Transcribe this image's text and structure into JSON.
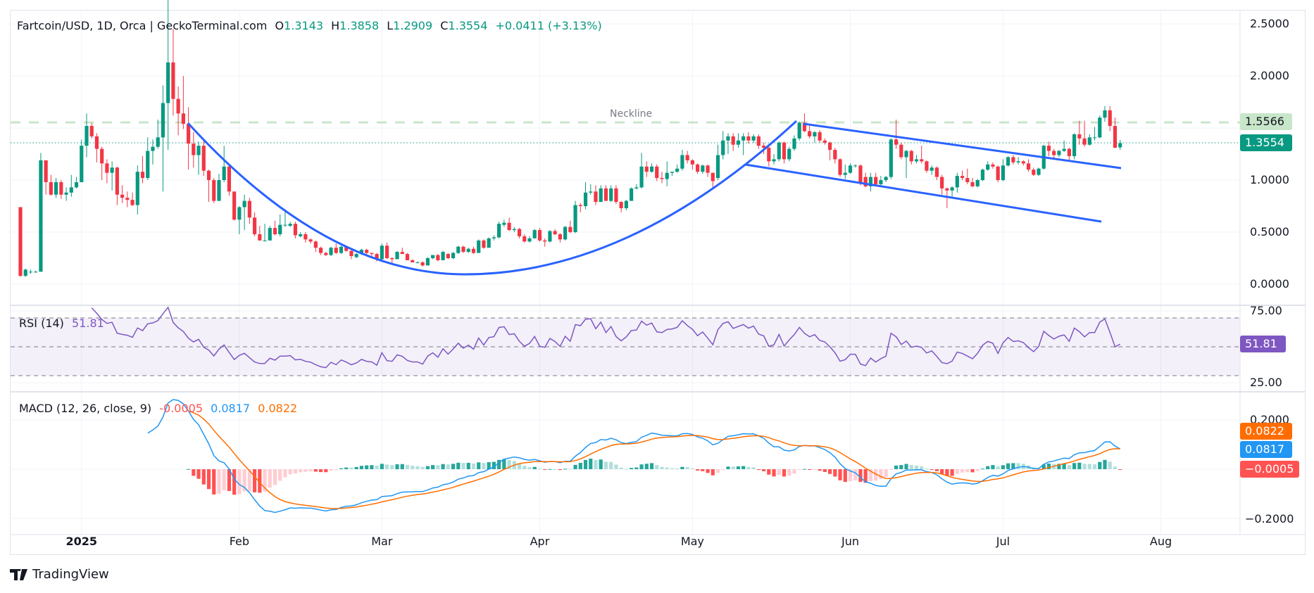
{
  "legend": {
    "symbol": "Fartcoin/USD, 1D, Orca | GeckoTerminal.com",
    "o_label": "O",
    "o": "1.3143",
    "h_label": "H",
    "h": "1.3858",
    "l_label": "L",
    "l": "1.2909",
    "c_label": "C",
    "c": "1.3554",
    "change": "+0.0411 (+3.13%)"
  },
  "rsi_legend": {
    "name": "RSI (14)",
    "value": "51.81"
  },
  "macd_legend": {
    "name": "MACD (12, 26, close, 9)",
    "hist": "-0.0005",
    "macd": "0.0817",
    "signal": "0.0822"
  },
  "price_axis": [
    "2.5000",
    "2.0000",
    "1.0000",
    "0.5000",
    "0.0000"
  ],
  "rsi_axis": [
    "75.00",
    "25.00"
  ],
  "macd_axis": [
    "0.2000",
    "−0.2000"
  ],
  "tags": {
    "neckline": "1.5566",
    "last_price": "1.3554",
    "rsi": "51.81",
    "signal": "0.0822",
    "macd": "0.0817",
    "hist": "−0.0005"
  },
  "neckline_label": "Neckline",
  "brand": "TradingView",
  "colors": {
    "up": "#089981",
    "down": "#f23645",
    "rsi": "#7e57c2",
    "macd": "#2196f3",
    "signal": "#ff6d00",
    "trendline": "#2962ff",
    "neckline": "#c8e6c9"
  },
  "chart_data": {
    "type": "candlestick",
    "interval": "1D",
    "price_levels": [
      2.5,
      2.0,
      1.0,
      0.5,
      0.0
    ],
    "ylim": [
      0,
      2.6
    ],
    "neckline": 1.5566,
    "last_close": 1.3554,
    "x_ticks": [
      {
        "label": "2025",
        "date": "2025-01-01"
      },
      {
        "label": "Feb",
        "date": "2025-02-01"
      },
      {
        "label": "Mar",
        "date": "2025-03-01"
      },
      {
        "label": "Apr",
        "date": "2025-04-01"
      },
      {
        "label": "May",
        "date": "2025-05-01"
      },
      {
        "label": "Jun",
        "date": "2025-06-01"
      },
      {
        "label": "Jul",
        "date": "2025-07-01"
      },
      {
        "label": "Aug",
        "date": "2025-08-01"
      }
    ],
    "rsi": {
      "period": 14,
      "last": 51.81,
      "bands": [
        70,
        50,
        30
      ]
    },
    "macd": {
      "fast": 12,
      "slow": 26,
      "signal": 9,
      "last_macd": 0.0817,
      "last_signal": 0.0822,
      "last_hist": -0.0005
    },
    "ohlc": [
      [
        0.74,
        0.74,
        0.07,
        0.08
      ],
      [
        0.08,
        0.15,
        0.07,
        0.14
      ],
      [
        0.12,
        0.14,
        0.1,
        0.12
      ],
      [
        0.12,
        0.13,
        0.11,
        0.12
      ],
      [
        0.12,
        1.26,
        0.12,
        1.19
      ],
      [
        1.19,
        1.19,
        0.86,
        0.98
      ],
      [
        0.98,
        1.05,
        0.85,
        0.86
      ],
      [
        0.86,
        1.02,
        0.83,
        0.98
      ],
      [
        0.98,
        1.0,
        0.82,
        0.86
      ],
      [
        0.86,
        0.93,
        0.8,
        0.88
      ],
      [
        0.88,
        1.05,
        0.84,
        0.93
      ],
      [
        0.93,
        1.03,
        0.92,
        0.98
      ],
      [
        0.98,
        1.39,
        0.98,
        1.33
      ],
      [
        1.33,
        1.64,
        1.22,
        1.52
      ],
      [
        1.52,
        1.55,
        1.4,
        1.42
      ],
      [
        1.42,
        1.45,
        1.17,
        1.3
      ],
      [
        1.3,
        1.32,
        1.0,
        1.16
      ],
      [
        1.16,
        1.2,
        0.97,
        1.07
      ],
      [
        1.07,
        1.18,
        0.9,
        1.12
      ],
      [
        1.12,
        1.13,
        0.76,
        0.86
      ],
      [
        0.86,
        0.95,
        0.78,
        0.83
      ],
      [
        0.83,
        0.89,
        0.74,
        0.81
      ],
      [
        0.81,
        0.88,
        0.75,
        0.76
      ],
      [
        0.76,
        1.14,
        0.67,
        1.08
      ],
      [
        1.08,
        1.23,
        0.97,
        1.02
      ],
      [
        1.02,
        1.41,
        1.0,
        1.28
      ],
      [
        1.28,
        1.39,
        1.15,
        1.32
      ],
      [
        1.32,
        1.58,
        1.3,
        1.41
      ],
      [
        1.41,
        1.91,
        0.89,
        1.74
      ],
      [
        1.74,
        2.75,
        1.29,
        2.13
      ],
      [
        2.13,
        2.45,
        1.62,
        1.78
      ],
      [
        1.78,
        1.9,
        1.43,
        1.64
      ],
      [
        1.64,
        2.0,
        1.49,
        1.54
      ],
      [
        1.54,
        1.7,
        1.1,
        1.35
      ],
      [
        1.35,
        1.46,
        1.12,
        1.24
      ],
      [
        1.24,
        1.37,
        1.05,
        1.33
      ],
      [
        1.33,
        1.38,
        1.04,
        1.09
      ],
      [
        1.09,
        1.1,
        0.79,
        1.0
      ],
      [
        1.0,
        1.02,
        0.78,
        0.8
      ],
      [
        0.8,
        1.06,
        0.8,
        1.0
      ],
      [
        1.0,
        1.33,
        0.98,
        1.13
      ],
      [
        1.13,
        1.15,
        0.85,
        0.89
      ],
      [
        0.89,
        0.89,
        0.61,
        0.62
      ],
      [
        0.62,
        0.75,
        0.48,
        0.74
      ],
      [
        0.74,
        0.86,
        0.52,
        0.8
      ],
      [
        0.8,
        0.83,
        0.58,
        0.64
      ],
      [
        0.64,
        0.69,
        0.46,
        0.48
      ],
      [
        0.48,
        0.56,
        0.42,
        0.42
      ],
      [
        0.42,
        0.58,
        0.41,
        0.42
      ],
      [
        0.42,
        0.56,
        0.42,
        0.54
      ],
      [
        0.54,
        0.61,
        0.47,
        0.48
      ],
      [
        0.48,
        0.67,
        0.46,
        0.57
      ],
      [
        0.57,
        0.72,
        0.55,
        0.57
      ],
      [
        0.56,
        0.6,
        0.55,
        0.58
      ],
      [
        0.58,
        0.6,
        0.44,
        0.47
      ],
      [
        0.46,
        0.5,
        0.45,
        0.48
      ],
      [
        0.48,
        0.5,
        0.4,
        0.43
      ],
      [
        0.43,
        0.44,
        0.39,
        0.41
      ],
      [
        0.41,
        0.42,
        0.31,
        0.35
      ],
      [
        0.35,
        0.36,
        0.28,
        0.3
      ],
      [
        0.3,
        0.31,
        0.27,
        0.28
      ],
      [
        0.28,
        0.36,
        0.27,
        0.35
      ],
      [
        0.35,
        0.39,
        0.29,
        0.3
      ],
      [
        0.3,
        0.37,
        0.29,
        0.36
      ],
      [
        0.36,
        0.37,
        0.31,
        0.32
      ],
      [
        0.32,
        0.33,
        0.24,
        0.27
      ],
      [
        0.26,
        0.3,
        0.25,
        0.29
      ],
      [
        0.29,
        0.34,
        0.28,
        0.33
      ],
      [
        0.33,
        0.34,
        0.29,
        0.3
      ],
      [
        0.3,
        0.3,
        0.26,
        0.29
      ],
      [
        0.29,
        0.3,
        0.22,
        0.24
      ],
      [
        0.24,
        0.39,
        0.23,
        0.37
      ],
      [
        0.37,
        0.4,
        0.24,
        0.25
      ],
      [
        0.25,
        0.26,
        0.2,
        0.24
      ],
      [
        0.24,
        0.32,
        0.24,
        0.31
      ],
      [
        0.31,
        0.35,
        0.29,
        0.29
      ],
      [
        0.29,
        0.3,
        0.23,
        0.23
      ],
      [
        0.23,
        0.24,
        0.21,
        0.21
      ],
      [
        0.21,
        0.22,
        0.2,
        0.21
      ],
      [
        0.21,
        0.22,
        0.17,
        0.18
      ],
      [
        0.18,
        0.26,
        0.18,
        0.25
      ],
      [
        0.25,
        0.28,
        0.24,
        0.28
      ],
      [
        0.28,
        0.29,
        0.22,
        0.23
      ],
      [
        0.23,
        0.32,
        0.23,
        0.31
      ],
      [
        0.29,
        0.3,
        0.24,
        0.25
      ],
      [
        0.25,
        0.31,
        0.24,
        0.3
      ],
      [
        0.3,
        0.37,
        0.29,
        0.36
      ],
      [
        0.36,
        0.37,
        0.3,
        0.31
      ],
      [
        0.31,
        0.35,
        0.3,
        0.34
      ],
      [
        0.34,
        0.36,
        0.29,
        0.3
      ],
      [
        0.3,
        0.43,
        0.3,
        0.42
      ],
      [
        0.42,
        0.43,
        0.34,
        0.35
      ],
      [
        0.35,
        0.45,
        0.35,
        0.44
      ],
      [
        0.44,
        0.47,
        0.42,
        0.45
      ],
      [
        0.45,
        0.6,
        0.44,
        0.58
      ],
      [
        0.57,
        0.62,
        0.55,
        0.59
      ],
      [
        0.59,
        0.64,
        0.51,
        0.52
      ],
      [
        0.52,
        0.55,
        0.5,
        0.53
      ],
      [
        0.53,
        0.54,
        0.44,
        0.46
      ],
      [
        0.46,
        0.48,
        0.4,
        0.41
      ],
      [
        0.41,
        0.46,
        0.4,
        0.44
      ],
      [
        0.44,
        0.53,
        0.44,
        0.52
      ],
      [
        0.52,
        0.54,
        0.41,
        0.42
      ],
      [
        0.42,
        0.44,
        0.36,
        0.41
      ],
      [
        0.41,
        0.52,
        0.4,
        0.51
      ],
      [
        0.51,
        0.53,
        0.47,
        0.48
      ],
      [
        0.48,
        0.49,
        0.4,
        0.43
      ],
      [
        0.43,
        0.56,
        0.42,
        0.55
      ],
      [
        0.55,
        0.61,
        0.49,
        0.5
      ],
      [
        0.5,
        0.8,
        0.49,
        0.76
      ],
      [
        0.76,
        0.78,
        0.69,
        0.75
      ],
      [
        0.75,
        0.98,
        0.72,
        0.88
      ],
      [
        0.88,
        0.96,
        0.86,
        0.89
      ],
      [
        0.89,
        0.95,
        0.76,
        0.79
      ],
      [
        0.79,
        0.95,
        0.79,
        0.92
      ],
      [
        0.92,
        0.95,
        0.8,
        0.8
      ],
      [
        0.8,
        0.95,
        0.79,
        0.92
      ],
      [
        0.92,
        0.95,
        0.77,
        0.79
      ],
      [
        0.79,
        0.8,
        0.69,
        0.73
      ],
      [
        0.73,
        0.81,
        0.71,
        0.8
      ],
      [
        0.8,
        0.93,
        0.8,
        0.92
      ],
      [
        0.92,
        0.96,
        0.91,
        0.93
      ],
      [
        0.93,
        1.26,
        0.92,
        1.13
      ],
      [
        1.13,
        1.18,
        1.03,
        1.08
      ],
      [
        1.08,
        1.16,
        1.07,
        1.13
      ],
      [
        1.13,
        1.15,
        0.99,
        1.02
      ],
      [
        1.02,
        1.08,
        0.97,
        1.01
      ],
      [
        1.01,
        1.18,
        0.94,
        1.07
      ],
      [
        1.07,
        1.08,
        1.04,
        1.08
      ],
      [
        1.08,
        1.15,
        1.07,
        1.11
      ],
      [
        1.11,
        1.29,
        1.09,
        1.24
      ],
      [
        1.24,
        1.28,
        1.16,
        1.19
      ],
      [
        1.19,
        1.2,
        1.1,
        1.15
      ],
      [
        1.15,
        1.16,
        1.06,
        1.08
      ],
      [
        1.08,
        1.15,
        1.06,
        1.14
      ],
      [
        1.14,
        1.15,
        1.03,
        1.07
      ],
      [
        1.07,
        1.07,
        0.93,
        0.99
      ],
      [
        1.02,
        1.34,
        1.0,
        1.24
      ],
      [
        1.24,
        1.47,
        1.2,
        1.38
      ],
      [
        1.38,
        1.45,
        1.25,
        1.42
      ],
      [
        1.42,
        1.45,
        1.28,
        1.34
      ],
      [
        1.34,
        1.45,
        1.31,
        1.38
      ],
      [
        1.38,
        1.45,
        1.24,
        1.42
      ],
      [
        1.42,
        1.46,
        1.35,
        1.38
      ],
      [
        1.38,
        1.44,
        1.36,
        1.42
      ],
      [
        1.42,
        1.44,
        1.3,
        1.33
      ],
      [
        1.33,
        1.36,
        1.25,
        1.31
      ],
      [
        1.31,
        1.32,
        1.13,
        1.18
      ],
      [
        1.18,
        1.25,
        1.15,
        1.2
      ],
      [
        1.2,
        1.37,
        1.18,
        1.36
      ],
      [
        1.36,
        1.37,
        1.16,
        1.2
      ],
      [
        1.2,
        1.32,
        1.18,
        1.3
      ],
      [
        1.3,
        1.43,
        1.28,
        1.4
      ],
      [
        1.4,
        1.56,
        1.38,
        1.55
      ],
      [
        1.55,
        1.64,
        1.46,
        1.47
      ],
      [
        1.47,
        1.52,
        1.4,
        1.42
      ],
      [
        1.42,
        1.47,
        1.36,
        1.46
      ],
      [
        1.46,
        1.48,
        1.36,
        1.38
      ],
      [
        1.38,
        1.4,
        1.34,
        1.36
      ],
      [
        1.36,
        1.37,
        1.19,
        1.29
      ],
      [
        1.29,
        1.31,
        1.16,
        1.2
      ],
      [
        1.2,
        1.21,
        1.03,
        1.05
      ],
      [
        1.05,
        1.15,
        1.01,
        1.07
      ],
      [
        1.07,
        1.16,
        1.06,
        1.14
      ],
      [
        1.14,
        1.15,
        1.12,
        1.14
      ],
      [
        1.14,
        1.15,
        0.95,
        0.97
      ],
      [
        1.03,
        1.07,
        0.93,
        0.94
      ],
      [
        0.94,
        1.07,
        0.89,
        1.03
      ],
      [
        1.03,
        1.07,
        0.94,
        0.96
      ],
      [
        0.96,
        1.04,
        0.95,
        1.0
      ],
      [
        1.0,
        1.04,
        0.98,
        1.03
      ],
      [
        1.03,
        1.4,
        1.01,
        1.39
      ],
      [
        1.39,
        1.58,
        1.3,
        1.34
      ],
      [
        1.34,
        1.36,
        1.2,
        1.22
      ],
      [
        1.22,
        1.29,
        1.02,
        1.28
      ],
      [
        1.28,
        1.29,
        1.15,
        1.18
      ],
      [
        1.18,
        1.24,
        1.16,
        1.2
      ],
      [
        1.2,
        1.33,
        1.16,
        1.18
      ],
      [
        1.18,
        1.19,
        1.07,
        1.09
      ],
      [
        1.09,
        1.14,
        1.05,
        1.12
      ],
      [
        1.12,
        1.13,
        1.0,
        1.03
      ],
      [
        1.03,
        1.05,
        0.86,
        0.92
      ],
      [
        0.92,
        0.93,
        0.73,
        0.9
      ],
      [
        0.9,
        0.94,
        0.84,
        0.93
      ],
      [
        0.93,
        1.07,
        0.88,
        1.04
      ],
      [
        1.04,
        1.09,
        1.0,
        1.02
      ],
      [
        1.02,
        1.11,
        0.96,
        0.98
      ],
      [
        0.98,
        1.02,
        0.93,
        0.94
      ],
      [
        0.94,
        1.01,
        0.93,
        1.0
      ],
      [
        1.0,
        1.11,
        0.99,
        1.1
      ],
      [
        1.1,
        1.18,
        1.09,
        1.15
      ],
      [
        1.15,
        1.17,
        1.11,
        1.13
      ],
      [
        1.13,
        1.14,
        0.98,
        1.0
      ],
      [
        1.0,
        1.2,
        0.99,
        1.14
      ],
      [
        1.14,
        1.23,
        1.13,
        1.22
      ],
      [
        1.22,
        1.24,
        1.15,
        1.17
      ],
      [
        1.17,
        1.22,
        1.15,
        1.18
      ],
      [
        1.18,
        1.19,
        1.14,
        1.16
      ],
      [
        1.16,
        1.2,
        1.08,
        1.1
      ],
      [
        1.1,
        1.12,
        1.04,
        1.05
      ],
      [
        1.05,
        1.12,
        1.04,
        1.11
      ],
      [
        1.11,
        1.34,
        1.1,
        1.33
      ],
      [
        1.33,
        1.37,
        1.23,
        1.28
      ],
      [
        1.28,
        1.3,
        1.21,
        1.24
      ],
      [
        1.24,
        1.29,
        1.22,
        1.28
      ],
      [
        1.28,
        1.38,
        1.27,
        1.3
      ],
      [
        1.3,
        1.31,
        1.19,
        1.23
      ],
      [
        1.23,
        1.45,
        1.2,
        1.44
      ],
      [
        1.44,
        1.57,
        1.34,
        1.4
      ],
      [
        1.4,
        1.57,
        1.32,
        1.34
      ],
      [
        1.34,
        1.44,
        1.33,
        1.41
      ],
      [
        1.41,
        1.51,
        1.38,
        1.41
      ],
      [
        1.41,
        1.62,
        1.4,
        1.6
      ],
      [
        1.6,
        1.71,
        1.56,
        1.67
      ],
      [
        1.67,
        1.71,
        1.47,
        1.52
      ],
      [
        1.52,
        1.6,
        1.31,
        1.31
      ],
      [
        1.3143,
        1.3858,
        1.2909,
        1.3554
      ]
    ]
  }
}
